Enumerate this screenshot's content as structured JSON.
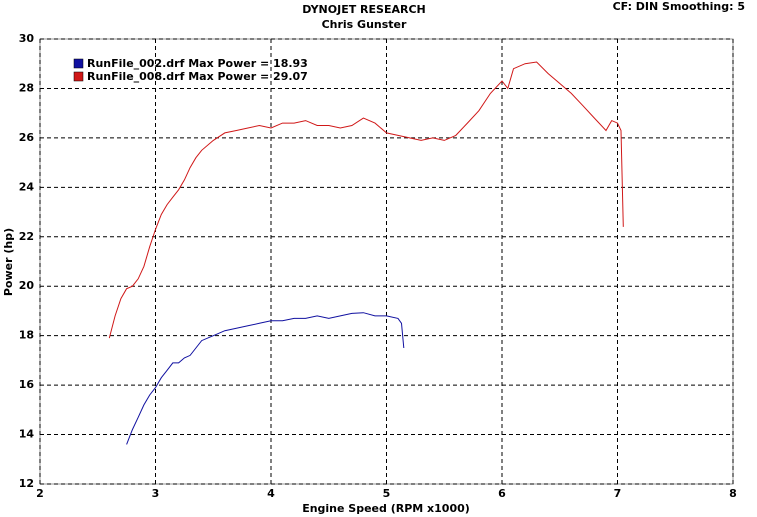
{
  "chart_data": {
    "type": "line",
    "title": "DYNOJET RESEARCH",
    "subtitle": "Chris Gunster",
    "annotation": "CF: DIN  Smoothing: 5",
    "x_label": "Engine Speed (RPM x1000)",
    "y_label": "Power (hp)",
    "xlim": [
      2,
      8
    ],
    "xticks": [
      2,
      3,
      4,
      5,
      6,
      7,
      8
    ],
    "ylim": [
      12,
      30
    ],
    "yticks": [
      12,
      14,
      16,
      18,
      20,
      22,
      24,
      26,
      28,
      30
    ],
    "grid": true,
    "series": [
      {
        "name": "RunFile_002.drf Max Power = 18.93",
        "color": "#1010a0",
        "x": [
          2.75,
          2.8,
          2.85,
          2.9,
          2.95,
          3.0,
          3.05,
          3.1,
          3.15,
          3.2,
          3.25,
          3.3,
          3.35,
          3.4,
          3.5,
          3.6,
          3.7,
          3.8,
          3.9,
          4.0,
          4.1,
          4.2,
          4.3,
          4.4,
          4.5,
          4.6,
          4.7,
          4.8,
          4.9,
          5.0,
          5.1,
          5.13,
          5.15
        ],
        "values": [
          13.6,
          14.2,
          14.7,
          15.2,
          15.6,
          15.9,
          16.3,
          16.6,
          16.9,
          16.9,
          17.1,
          17.2,
          17.5,
          17.8,
          18.0,
          18.2,
          18.3,
          18.4,
          18.5,
          18.6,
          18.6,
          18.7,
          18.7,
          18.8,
          18.7,
          18.8,
          18.9,
          18.93,
          18.8,
          18.8,
          18.7,
          18.5,
          17.5
        ]
      },
      {
        "name": "RunFile_008.drf Max Power = 29.07",
        "color": "#d01818",
        "x": [
          2.6,
          2.65,
          2.7,
          2.75,
          2.8,
          2.85,
          2.9,
          2.95,
          3.0,
          3.05,
          3.1,
          3.15,
          3.2,
          3.25,
          3.3,
          3.35,
          3.4,
          3.5,
          3.6,
          3.7,
          3.8,
          3.9,
          4.0,
          4.1,
          4.2,
          4.3,
          4.4,
          4.5,
          4.6,
          4.7,
          4.8,
          4.9,
          5.0,
          5.1,
          5.2,
          5.3,
          5.4,
          5.5,
          5.6,
          5.7,
          5.8,
          5.9,
          6.0,
          6.05,
          6.1,
          6.2,
          6.3,
          6.4,
          6.5,
          6.6,
          6.7,
          6.8,
          6.9,
          6.95,
          7.0,
          7.03,
          7.05
        ],
        "values": [
          17.9,
          18.8,
          19.5,
          19.9,
          20.0,
          20.3,
          20.8,
          21.6,
          22.3,
          22.9,
          23.3,
          23.6,
          23.9,
          24.3,
          24.8,
          25.2,
          25.5,
          25.9,
          26.2,
          26.3,
          26.4,
          26.5,
          26.4,
          26.6,
          26.6,
          26.7,
          26.5,
          26.5,
          26.4,
          26.5,
          26.8,
          26.6,
          26.2,
          26.1,
          26.0,
          25.9,
          26.0,
          25.9,
          26.1,
          26.6,
          27.1,
          27.8,
          28.3,
          28.0,
          28.8,
          29.0,
          29.07,
          28.6,
          28.2,
          27.8,
          27.3,
          26.8,
          26.3,
          26.7,
          26.6,
          26.3,
          22.4
        ]
      }
    ]
  }
}
